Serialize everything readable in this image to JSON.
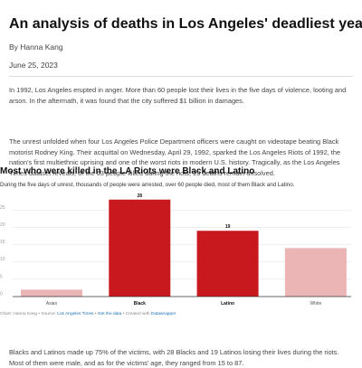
{
  "article": {
    "title": "An analysis of deaths in Los Angeles' deadliest year",
    "byline": "By Hanna Kang",
    "date": "June 25, 2023",
    "paragraphs": [
      "In 1992, Los Angeles erupted in anger. More than 60 people lost their lives in the five days of violence, looting and arson. In the aftermath, it was found that the city suffered $1 billion in damages.",
      "The unrest unfolded when four Los Angeles Police Department officers were caught on videotape beating Black motorist Rodney King. Their acquittal on Wednesday, April 29, 1992, sparked the Los Angeles Riots of 1992, the nation's first multiethnic uprising and one of the worst riots in modern U.S. history. Tragically, as the Los Angeles Times dataset reveals, of the 63 people killed during the riots, 23 deaths remain unsolved.",
      "Blacks and Latinos made up 75% of the victims, with 28 Blacks and 19 Latinos losing their lives during the riots. Most of them were male, and as for the victims' age, they ranged from 15 to 87."
    ]
  },
  "chart": {
    "headline": "Most who were killed in the LA Riots were Black and Latino",
    "description": "During the five days of unrest, thousands of people were arrested, over 60 people died, most of them Black and Latino.",
    "source": {
      "prefix": "Chart: Hanna Kang • Source: ",
      "source_link": "Los Angeles Times",
      "sep1": " • ",
      "get_data": "Get the data",
      "sep2": " • Created with ",
      "tool": "Datawrapper"
    }
  },
  "chart_data": {
    "type": "bar",
    "categories": [
      "Asian",
      "Black",
      "Latino",
      "White"
    ],
    "values": [
      2,
      28,
      19,
      14
    ],
    "data_labels": {
      "Black": "28",
      "Latino": "19"
    },
    "highlighted": [
      "Black",
      "Latino"
    ],
    "y_ticks": [
      0,
      5,
      10,
      15,
      20,
      25
    ],
    "ylim": [
      0,
      30
    ],
    "grid": true,
    "colors": {
      "highlight": "#c8191f",
      "muted": "#ebb4b5",
      "grid": "#e3e3e3",
      "baseline": "#333333"
    }
  }
}
